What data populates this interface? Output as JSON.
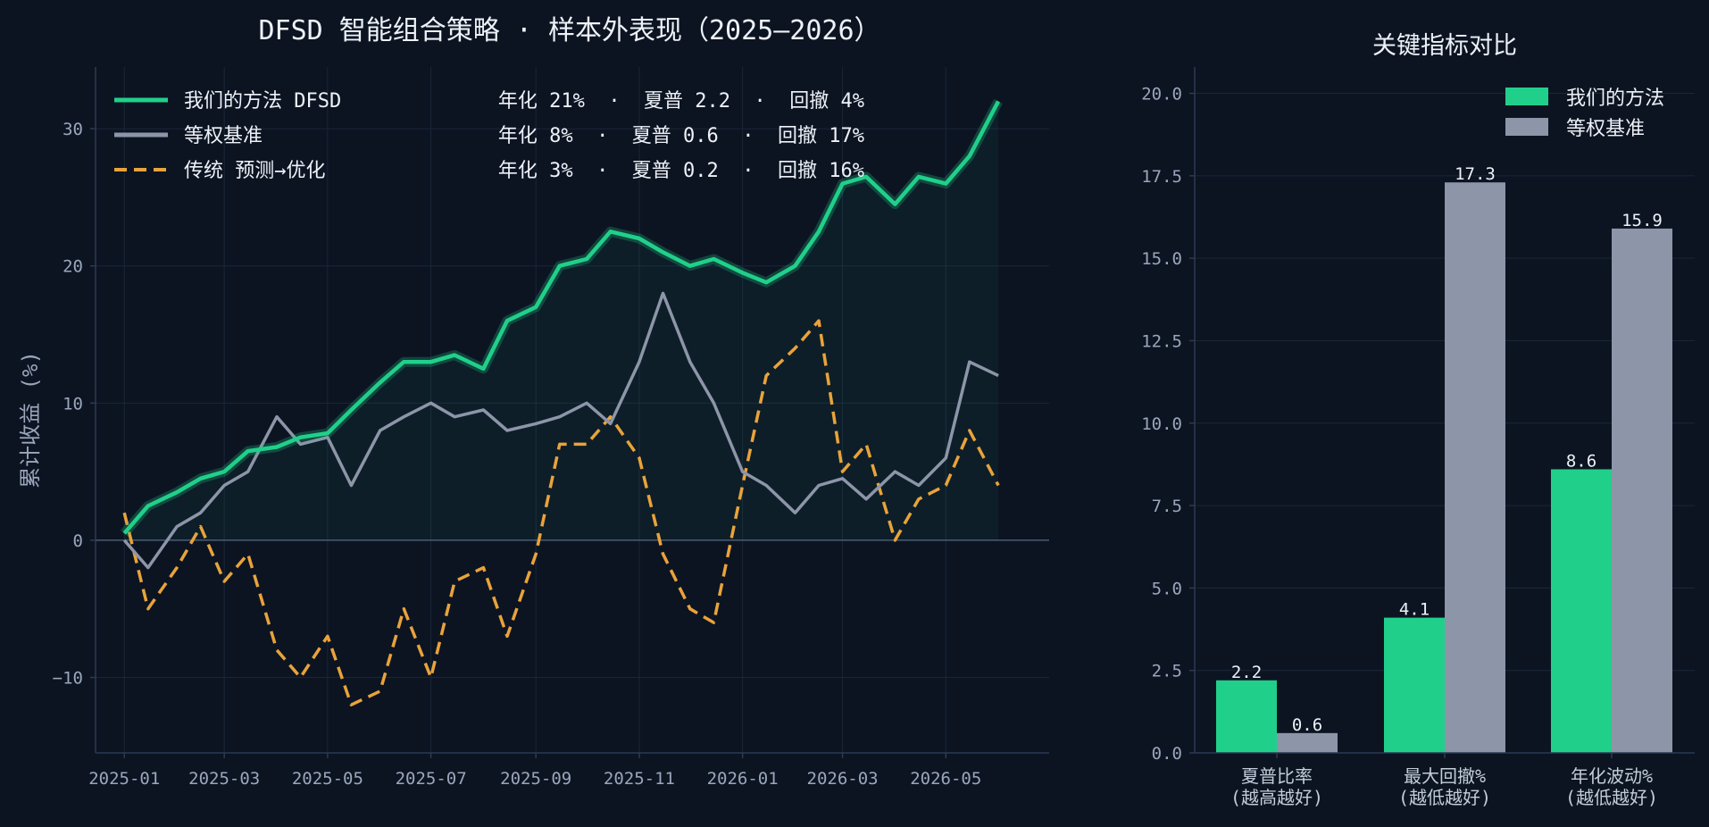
{
  "colors": {
    "background": "#0c1422",
    "ours": "#20d08a",
    "baseline": "#8d95a8",
    "traditional": "#e9a33a",
    "grid": "#1a2638",
    "axis": "#2c3a52",
    "tick_text": "#9aa6bb",
    "title_text": "#eef2f8"
  },
  "chart_data": [
    {
      "type": "line",
      "title": "DFSD 智能组合策略 · 样本外表现（2025–2026）",
      "xlabel": "",
      "ylabel": "累计收益 (%)",
      "x_range": [
        "2024-12-15",
        "2026-07-01"
      ],
      "ylim": [
        -15.5,
        34.5
      ],
      "y_ticks": [
        -10,
        0,
        10,
        20,
        30
      ],
      "y_tick_labels": [
        "−10",
        "0",
        "10",
        "20",
        "30"
      ],
      "x_ticks": [
        "2025-01-01",
        "2025-03-01",
        "2025-05-01",
        "2025-07-01",
        "2025-09-01",
        "2025-11-01",
        "2026-01-01",
        "2026-03-01",
        "2026-05-01"
      ],
      "x_tick_labels": [
        "2025-01",
        "2025-03",
        "2025-05",
        "2025-07",
        "2025-09",
        "2025-11",
        "2026-01",
        "2026-03",
        "2026-05"
      ],
      "grid": true,
      "legend_position": "top-left",
      "series": [
        {
          "name": "我们的方法 DFSD",
          "stats": "年化 21%  ·  夏普 2.2  ·  回撤 4%",
          "color": "#20d08a",
          "style": "solid-glow-filled",
          "x": [
            "2025-01-01",
            "2025-01-15",
            "2025-02-01",
            "2025-02-15",
            "2025-03-01",
            "2025-03-15",
            "2025-04-01",
            "2025-04-15",
            "2025-05-01",
            "2025-05-15",
            "2025-06-01",
            "2025-06-15",
            "2025-07-01",
            "2025-07-15",
            "2025-08-01",
            "2025-08-15",
            "2025-09-01",
            "2025-09-15",
            "2025-10-01",
            "2025-10-15",
            "2025-11-01",
            "2025-11-15",
            "2025-12-01",
            "2025-12-15",
            "2026-01-01",
            "2026-01-15",
            "2026-02-01",
            "2026-02-15",
            "2026-03-01",
            "2026-03-15",
            "2026-04-01",
            "2026-04-15",
            "2026-05-01",
            "2026-05-15",
            "2026-06-01"
          ],
          "y": [
            0.5,
            2.5,
            3.5,
            4.5,
            5.0,
            6.5,
            6.8,
            7.5,
            7.8,
            9.5,
            11.5,
            13.0,
            13.0,
            13.5,
            12.5,
            16.0,
            17.0,
            20.0,
            20.5,
            22.5,
            22.0,
            21.0,
            20.0,
            20.5,
            19.5,
            18.8,
            20.0,
            22.5,
            26.0,
            26.5,
            24.5,
            26.5,
            26.0,
            28.0,
            32.0
          ]
        },
        {
          "name": "等权基准",
          "stats": "年化 8%  ·  夏普 0.6  ·  回撤 17%",
          "color": "#8d95a8",
          "style": "solid",
          "x": [
            "2025-01-01",
            "2025-01-15",
            "2025-02-01",
            "2025-02-15",
            "2025-03-01",
            "2025-03-15",
            "2025-04-01",
            "2025-04-15",
            "2025-05-01",
            "2025-05-15",
            "2025-06-01",
            "2025-06-15",
            "2025-07-01",
            "2025-07-15",
            "2025-08-01",
            "2025-08-15",
            "2025-09-01",
            "2025-09-15",
            "2025-10-01",
            "2025-10-15",
            "2025-11-01",
            "2025-11-15",
            "2025-12-01",
            "2025-12-15",
            "2026-01-01",
            "2026-01-15",
            "2026-02-01",
            "2026-02-15",
            "2026-03-01",
            "2026-03-15",
            "2026-04-01",
            "2026-04-15",
            "2026-05-01",
            "2026-05-15",
            "2026-06-01"
          ],
          "y": [
            0.0,
            -2.0,
            1.0,
            2.0,
            4.0,
            5.0,
            9.0,
            7.0,
            7.5,
            4.0,
            8.0,
            9.0,
            10.0,
            9.0,
            9.5,
            8.0,
            8.5,
            9.0,
            10.0,
            8.5,
            13.0,
            18.0,
            13.0,
            10.0,
            5.0,
            4.0,
            2.0,
            4.0,
            4.5,
            3.0,
            5.0,
            4.0,
            6.0,
            13.0,
            12.0
          ]
        },
        {
          "name": "传统 预测→优化",
          "stats": "年化 3%  ·  夏普 0.2  ·  回撤 16%",
          "color": "#e9a33a",
          "style": "dashed",
          "x": [
            "2025-01-01",
            "2025-01-15",
            "2025-02-01",
            "2025-02-15",
            "2025-03-01",
            "2025-03-15",
            "2025-04-01",
            "2025-04-15",
            "2025-05-01",
            "2025-05-15",
            "2025-06-01",
            "2025-06-15",
            "2025-07-01",
            "2025-07-15",
            "2025-08-01",
            "2025-08-15",
            "2025-09-01",
            "2025-09-15",
            "2025-10-01",
            "2025-10-15",
            "2025-11-01",
            "2025-11-15",
            "2025-12-01",
            "2025-12-15",
            "2026-01-01",
            "2026-01-15",
            "2026-02-01",
            "2026-02-15",
            "2026-03-01",
            "2026-03-15",
            "2026-04-01",
            "2026-04-15",
            "2026-05-01",
            "2026-05-15",
            "2026-06-01"
          ],
          "y": [
            2.0,
            -5.0,
            -2.0,
            1.0,
            -3.0,
            -1.0,
            -8.0,
            -10.0,
            -7.0,
            -12.0,
            -11.0,
            -5.0,
            -10.0,
            -3.0,
            -2.0,
            -7.0,
            -1.0,
            7.0,
            7.0,
            9.0,
            6.0,
            -1.0,
            -5.0,
            -6.0,
            4.0,
            12.0,
            14.0,
            16.0,
            5.0,
            7.0,
            0.0,
            3.0,
            4.0,
            8.0,
            4.0
          ]
        }
      ]
    },
    {
      "type": "bar",
      "title": "关键指标对比",
      "categories": [
        "夏普比率\n(越高越好)",
        "最大回撤%\n(越低越好)",
        "年化波动%\n(越低越好)"
      ],
      "ylim": [
        0,
        20.8
      ],
      "y_ticks": [
        0,
        2.5,
        5.0,
        7.5,
        10.0,
        12.5,
        15.0,
        17.5,
        20.0
      ],
      "y_tick_labels": [
        "0.0",
        "2.5",
        "5.0",
        "7.5",
        "10.0",
        "12.5",
        "15.0",
        "17.5",
        "20.0"
      ],
      "grid": true,
      "legend_position": "top-right",
      "series": [
        {
          "name": "我们的方法",
          "color": "#20d08a",
          "values": [
            2.2,
            4.1,
            8.6
          ],
          "labels": [
            "2.2",
            "4.1",
            "8.6"
          ]
        },
        {
          "name": "等权基准",
          "color": "#8d95a8",
          "values": [
            0.6,
            17.3,
            15.9
          ],
          "labels": [
            "0.6",
            "17.3",
            "15.9"
          ]
        }
      ]
    }
  ]
}
